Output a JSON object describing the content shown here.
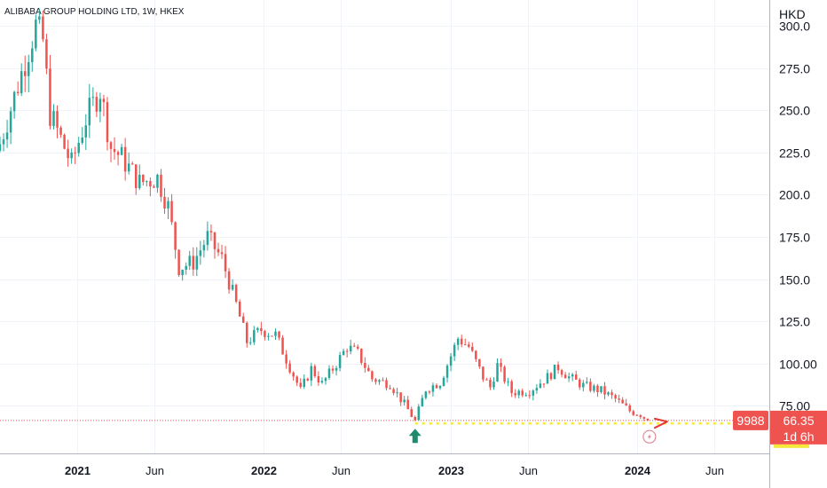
{
  "chart_data": {
    "type": "candlestick",
    "title": "ALIBABA GROUP HOLDING LTD, 1W, HKEX",
    "currency": "HKD",
    "ylim": [
      50,
      310
    ],
    "y_ticks": [
      "300.0",
      "275.0",
      "250.0",
      "225.0",
      "200.0",
      "175.0",
      "150.0",
      "125.0",
      "100.00",
      "75.00"
    ],
    "y_tick_values": [
      300,
      275,
      250,
      225,
      200,
      175,
      150,
      125,
      100,
      75
    ],
    "x_ticks": [
      {
        "label": "2021",
        "date": "2021-01-01",
        "bold": true
      },
      {
        "label": "Jun",
        "date": "2021-06-01",
        "bold": false
      },
      {
        "label": "2022",
        "date": "2022-01-01",
        "bold": true
      },
      {
        "label": "Jun",
        "date": "2022-06-01",
        "bold": false
      },
      {
        "label": "2023",
        "date": "2023-01-01",
        "bold": true
      },
      {
        "label": "Jun",
        "date": "2023-06-01",
        "bold": false
      },
      {
        "label": "2024",
        "date": "2024-01-01",
        "bold": true
      },
      {
        "label": "Jun",
        "date": "2024-06-01",
        "bold": false
      }
    ],
    "x_range": [
      "2020-08-03",
      "2024-09-16"
    ],
    "last_price": 66.35,
    "symbol_label": "9988",
    "price_label": "66.35",
    "countdown_label": "1d 6h",
    "support_level": 64.6,
    "support_date": "2022-10-24",
    "up_color": "#26a69a",
    "down_color": "#ef5350",
    "close_points": [
      [
        "2020-08-03",
        230
      ],
      [
        "2020-09-07",
        265
      ],
      [
        "2020-10-12",
        300
      ],
      [
        "2020-10-26",
        291
      ],
      [
        "2020-11-09",
        248
      ],
      [
        "2020-12-21",
        218
      ],
      [
        "2021-01-18",
        245
      ],
      [
        "2021-02-15",
        262
      ],
      [
        "2021-03-08",
        228
      ],
      [
        "2021-03-29",
        222
      ],
      [
        "2021-05-03",
        207
      ],
      [
        "2021-06-07",
        210
      ],
      [
        "2021-06-28",
        193
      ],
      [
        "2021-07-19",
        157
      ],
      [
        "2021-08-16",
        160
      ],
      [
        "2021-09-13",
        175
      ],
      [
        "2021-10-11",
        162
      ],
      [
        "2021-11-08",
        135
      ],
      [
        "2021-11-29",
        113
      ],
      [
        "2021-12-27",
        120
      ],
      [
        "2022-01-24",
        117
      ],
      [
        "2022-02-21",
        98
      ],
      [
        "2022-03-14",
        84
      ],
      [
        "2022-04-04",
        97
      ],
      [
        "2022-04-25",
        88
      ],
      [
        "2022-05-23",
        100
      ],
      [
        "2022-06-13",
        110
      ],
      [
        "2022-07-04",
        106
      ],
      [
        "2022-08-01",
        91
      ],
      [
        "2022-09-05",
        88
      ],
      [
        "2022-10-03",
        76
      ],
      [
        "2022-10-24",
        66
      ],
      [
        "2022-11-14",
        85
      ],
      [
        "2022-12-12",
        89
      ],
      [
        "2023-01-16",
        115
      ],
      [
        "2023-02-06",
        110
      ],
      [
        "2023-03-06",
        92
      ],
      [
        "2023-03-20",
        86
      ],
      [
        "2023-04-03",
        99
      ],
      [
        "2023-05-01",
        83
      ],
      [
        "2023-06-05",
        84
      ],
      [
        "2023-07-10",
        92
      ],
      [
        "2023-07-31",
        98
      ],
      [
        "2023-08-21",
        92
      ],
      [
        "2023-09-18",
        87
      ],
      [
        "2023-10-23",
        84
      ],
      [
        "2023-11-20",
        79
      ],
      [
        "2023-12-18",
        72
      ],
      [
        "2024-01-08",
        70
      ],
      [
        "2024-01-22",
        66.35
      ]
    ]
  }
}
